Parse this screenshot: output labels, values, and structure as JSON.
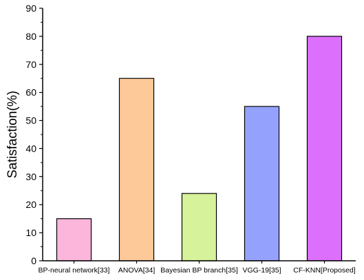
{
  "chart_data": {
    "type": "bar",
    "title": "",
    "xlabel": "",
    "ylabel": "Satisfaction(%)",
    "categories": [
      "BP-neural network[33]",
      "ANOVA[34]",
      "Bayesian BP branch[35]",
      "VGG-19[35]",
      "CF-KNN[Proposed]"
    ],
    "values": [
      15,
      65,
      24,
      55,
      80
    ],
    "colors": [
      "#fcb5db",
      "#fdc998",
      "#d6f29a",
      "#95a2fd",
      "#dd6ffd"
    ],
    "ylim": [
      0,
      90
    ],
    "yticks": [
      "0",
      "10",
      "20",
      "30",
      "40",
      "50",
      "60",
      "70",
      "80",
      "90"
    ],
    "grid": false,
    "legend": "none"
  }
}
